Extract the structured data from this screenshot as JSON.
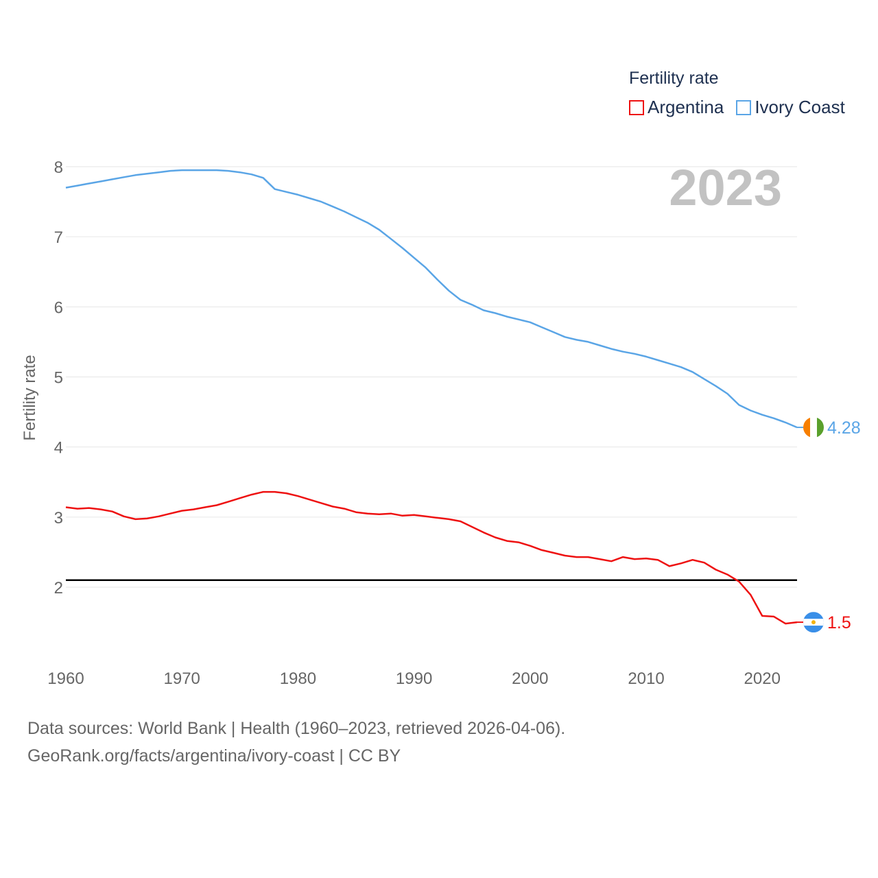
{
  "legend": {
    "title": "Fertility rate",
    "items": [
      {
        "label": "Argentina",
        "color": "#ee1111"
      },
      {
        "label": "Ivory Coast",
        "color": "#5aa5e6"
      }
    ]
  },
  "source": {
    "line1": "Data sources: World Bank | Health (1960–2023, retrieved 2026-04-06).",
    "line2": "GeoRank.org/facts/argentina/ivory-coast | CC BY"
  },
  "chart_data": {
    "type": "line",
    "title": "Fertility rate",
    "year_label": "2023",
    "xlabel": "",
    "ylabel": "Fertility rate",
    "xlim": [
      1960,
      2023
    ],
    "ylim": [
      1.0,
      8.2
    ],
    "x_ticks": [
      1960,
      1970,
      1980,
      1990,
      2000,
      2010,
      2020
    ],
    "y_ticks": [
      2,
      3,
      4,
      5,
      6,
      7,
      8
    ],
    "reference_line": {
      "value": 2.1,
      "color": "#000000"
    },
    "x": [
      1960,
      1961,
      1962,
      1963,
      1964,
      1965,
      1966,
      1967,
      1968,
      1969,
      1970,
      1971,
      1972,
      1973,
      1974,
      1975,
      1976,
      1977,
      1978,
      1979,
      1980,
      1981,
      1982,
      1983,
      1984,
      1985,
      1986,
      1987,
      1988,
      1989,
      1990,
      1991,
      1992,
      1993,
      1994,
      1995,
      1996,
      1997,
      1998,
      1999,
      2000,
      2001,
      2002,
      2003,
      2004,
      2005,
      2006,
      2007,
      2008,
      2009,
      2010,
      2011,
      2012,
      2013,
      2014,
      2015,
      2016,
      2017,
      2018,
      2019,
      2020,
      2021,
      2022,
      2023
    ],
    "series": [
      {
        "name": "Argentina",
        "color": "#ee1111",
        "end_label": "1.5",
        "values": [
          3.14,
          3.12,
          3.13,
          3.11,
          3.08,
          3.01,
          2.97,
          2.98,
          3.01,
          3.05,
          3.09,
          3.11,
          3.14,
          3.17,
          3.22,
          3.27,
          3.32,
          3.36,
          3.36,
          3.34,
          3.3,
          3.25,
          3.2,
          3.15,
          3.12,
          3.07,
          3.05,
          3.04,
          3.05,
          3.02,
          3.03,
          3.01,
          2.99,
          2.97,
          2.94,
          2.86,
          2.78,
          2.71,
          2.66,
          2.64,
          2.59,
          2.53,
          2.49,
          2.45,
          2.43,
          2.43,
          2.4,
          2.37,
          2.43,
          2.4,
          2.41,
          2.39,
          2.3,
          2.34,
          2.39,
          2.35,
          2.25,
          2.18,
          2.08,
          1.89,
          1.59,
          1.58,
          1.48,
          1.5
        ]
      },
      {
        "name": "Ivory Coast",
        "color": "#5aa5e6",
        "end_label": "4.28",
        "values": [
          7.7,
          7.73,
          7.76,
          7.79,
          7.82,
          7.85,
          7.88,
          7.9,
          7.92,
          7.94,
          7.95,
          7.95,
          7.95,
          7.95,
          7.94,
          7.92,
          7.89,
          7.84,
          7.68,
          7.64,
          7.6,
          7.55,
          7.5,
          7.43,
          7.36,
          7.28,
          7.2,
          7.1,
          6.97,
          6.84,
          6.7,
          6.56,
          6.39,
          6.23,
          6.1,
          6.03,
          5.95,
          5.91,
          5.86,
          5.82,
          5.78,
          5.71,
          5.64,
          5.57,
          5.53,
          5.5,
          5.45,
          5.4,
          5.36,
          5.33,
          5.29,
          5.24,
          5.19,
          5.14,
          5.07,
          4.97,
          4.87,
          4.76,
          4.6,
          4.52,
          4.46,
          4.41,
          4.35,
          4.28
        ]
      }
    ]
  }
}
